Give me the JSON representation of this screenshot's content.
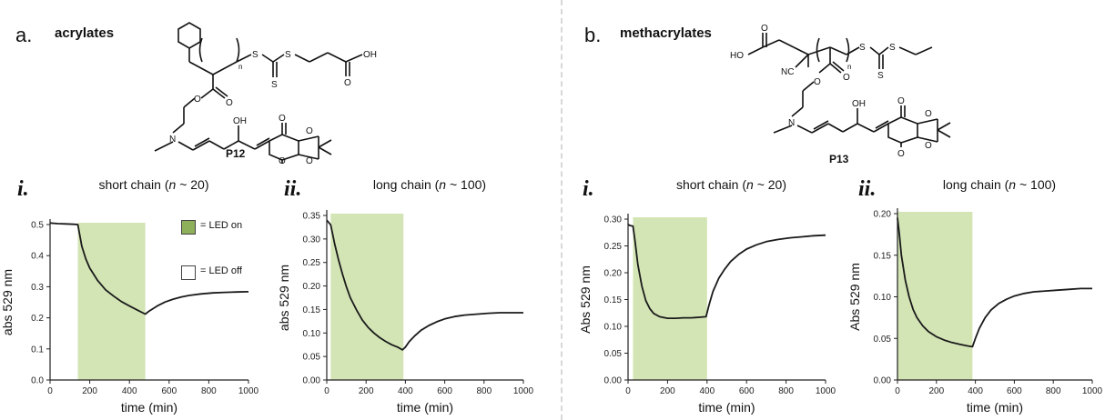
{
  "panel_a": {
    "letter": "a.",
    "title": "acrylates",
    "compound": "P12",
    "atoms": {
      "s1": "S",
      "s2": "S",
      "s3": "S",
      "o_ketone": "O",
      "o_acid": "O",
      "oh_acid": "OH",
      "o_ester_c": "O",
      "o_ester": "O",
      "n": "N",
      "oh": "OH",
      "o1": "O",
      "o2": "O",
      "o3": "O",
      "o4": "O",
      "sub_n": "n"
    }
  },
  "panel_b": {
    "letter": "b.",
    "title": "methacrylates",
    "compound": "P13",
    "atoms": {
      "ho": "HO",
      "o_acid": "O",
      "nc": "NC",
      "s1": "S",
      "s2": "S",
      "s3": "S",
      "o_ester_c": "O",
      "o_ester": "O",
      "n": "N",
      "oh": "OH",
      "o1": "O",
      "o2": "O",
      "o3": "O",
      "o4": "O",
      "sub_n": "n"
    }
  },
  "legend": {
    "on_label": "= LED on",
    "off_label": "= LED off",
    "on_color": "#d3e5b5",
    "off_color": "#ffffff"
  },
  "chart_data": [
    {
      "id": "a-i",
      "type": "line",
      "panel_label": "i.",
      "title_parts": [
        "short chain (",
        "n",
        " ~ 20)"
      ],
      "xlabel": "time (min)",
      "ylabel": "abs 529 nm",
      "xlim": [
        0,
        1000
      ],
      "ylim": [
        0.0,
        0.5
      ],
      "xticks": [
        0,
        200,
        400,
        600,
        800,
        1000
      ],
      "xtick_labels": [
        "0",
        "200",
        "400",
        "600",
        "800",
        "1000"
      ],
      "yticks": [
        0.0,
        0.1,
        0.2,
        0.3,
        0.4,
        0.5
      ],
      "ytick_labels": [
        "0.0",
        "0.1",
        "0.2",
        "0.3",
        "0.4",
        "0.5"
      ],
      "led_on": [
        140,
        480
      ],
      "series": [
        {
          "color": "#1a1a1a",
          "x": [
            0,
            40,
            80,
            120,
            140,
            160,
            180,
            200,
            240,
            280,
            320,
            360,
            400,
            440,
            480,
            500,
            540,
            580,
            620,
            660,
            700,
            760,
            820,
            880,
            940,
            1000
          ],
          "y": [
            0.505,
            0.503,
            0.502,
            0.501,
            0.5,
            0.43,
            0.39,
            0.36,
            0.32,
            0.29,
            0.27,
            0.252,
            0.238,
            0.225,
            0.212,
            0.222,
            0.238,
            0.251,
            0.26,
            0.267,
            0.272,
            0.277,
            0.28,
            0.282,
            0.283,
            0.284
          ]
        }
      ]
    },
    {
      "id": "a-ii",
      "type": "line",
      "panel_label": "ii.",
      "title_parts": [
        "long chain (",
        "n",
        " ~ 100)"
      ],
      "xlabel": "time (min)",
      "ylabel": "abs 529 nm",
      "xlim": [
        0,
        1000
      ],
      "ylim": [
        0.0,
        0.35
      ],
      "xticks": [
        0,
        200,
        400,
        600,
        800,
        1000
      ],
      "xtick_labels": [
        "0",
        "200",
        "400",
        "600",
        "800",
        "1000"
      ],
      "yticks": [
        0.0,
        0.05,
        0.1,
        0.15,
        0.2,
        0.25,
        0.3,
        0.35
      ],
      "ytick_labels": [
        "0.00",
        "0.05",
        "0.10",
        "0.15",
        "0.20",
        "0.25",
        "0.30",
        "0.35"
      ],
      "led_on": [
        20,
        390
      ],
      "series": [
        {
          "color": "#1a1a1a",
          "x": [
            0,
            10,
            20,
            30,
            40,
            60,
            80,
            100,
            120,
            150,
            180,
            210,
            240,
            270,
            300,
            330,
            360,
            385,
            400,
            420,
            450,
            480,
            520,
            560,
            600,
            650,
            700,
            760,
            820,
            880,
            940,
            1000
          ],
          "y": [
            0.34,
            0.335,
            0.33,
            0.31,
            0.29,
            0.255,
            0.225,
            0.198,
            0.175,
            0.15,
            0.128,
            0.112,
            0.1,
            0.09,
            0.082,
            0.075,
            0.07,
            0.064,
            0.07,
            0.082,
            0.095,
            0.106,
            0.116,
            0.124,
            0.13,
            0.135,
            0.138,
            0.14,
            0.142,
            0.143,
            0.143,
            0.143
          ]
        }
      ]
    },
    {
      "id": "b-i",
      "type": "line",
      "panel_label": "i.",
      "title_parts": [
        "short chain (",
        "n",
        " ~ 20)"
      ],
      "xlabel": "time (min)",
      "ylabel": "Abs 529 nm",
      "xlim": [
        0,
        1000
      ],
      "ylim": [
        0.0,
        0.3
      ],
      "xticks": [
        0,
        200,
        400,
        600,
        800,
        1000
      ],
      "xtick_labels": [
        "0",
        "200",
        "400",
        "600",
        "800",
        "1000"
      ],
      "yticks": [
        0.0,
        0.05,
        0.1,
        0.15,
        0.2,
        0.25,
        0.3
      ],
      "ytick_labels": [
        "0.00",
        "0.05",
        "0.10",
        "0.15",
        "0.20",
        "0.25",
        "0.30"
      ],
      "led_on": [
        25,
        400
      ],
      "series": [
        {
          "color": "#1a1a1a",
          "x": [
            0,
            10,
            25,
            35,
            50,
            70,
            90,
            110,
            130,
            160,
            200,
            240,
            280,
            320,
            360,
            395,
            410,
            430,
            460,
            490,
            520,
            560,
            600,
            650,
            700,
            760,
            820,
            880,
            940,
            1000
          ],
          "y": [
            0.29,
            0.288,
            0.287,
            0.26,
            0.215,
            0.175,
            0.148,
            0.133,
            0.124,
            0.118,
            0.115,
            0.115,
            0.116,
            0.116,
            0.117,
            0.118,
            0.14,
            0.165,
            0.19,
            0.207,
            0.221,
            0.234,
            0.244,
            0.252,
            0.258,
            0.262,
            0.265,
            0.267,
            0.269,
            0.27
          ]
        }
      ]
    },
    {
      "id": "b-ii",
      "type": "line",
      "panel_label": "ii.",
      "title_parts": [
        "long chain (",
        "n",
        " ~ 100)"
      ],
      "xlabel": "time (min)",
      "ylabel": "Abs 529 nm",
      "xlim": [
        0,
        1000
      ],
      "ylim": [
        0.0,
        0.2
      ],
      "xticks": [
        0,
        200,
        400,
        600,
        800,
        1000
      ],
      "xtick_labels": [
        "0",
        "200",
        "400",
        "600",
        "800",
        "1000"
      ],
      "yticks": [
        0.0,
        0.05,
        0.1,
        0.15,
        0.2
      ],
      "ytick_labels": [
        "0.00",
        "0.05",
        "0.10",
        "0.15",
        "0.20"
      ],
      "led_on": [
        0,
        385
      ],
      "series": [
        {
          "color": "#1a1a1a",
          "x": [
            0,
            10,
            20,
            40,
            60,
            80,
            100,
            130,
            160,
            200,
            240,
            280,
            320,
            360,
            385,
            400,
            420,
            450,
            480,
            520,
            560,
            600,
            650,
            700,
            760,
            820,
            880,
            940,
            1000
          ],
          "y": [
            0.195,
            0.175,
            0.15,
            0.12,
            0.1,
            0.085,
            0.075,
            0.065,
            0.058,
            0.052,
            0.048,
            0.045,
            0.043,
            0.041,
            0.04,
            0.05,
            0.062,
            0.075,
            0.084,
            0.092,
            0.097,
            0.101,
            0.104,
            0.106,
            0.107,
            0.108,
            0.109,
            0.11,
            0.11
          ]
        }
      ]
    }
  ]
}
